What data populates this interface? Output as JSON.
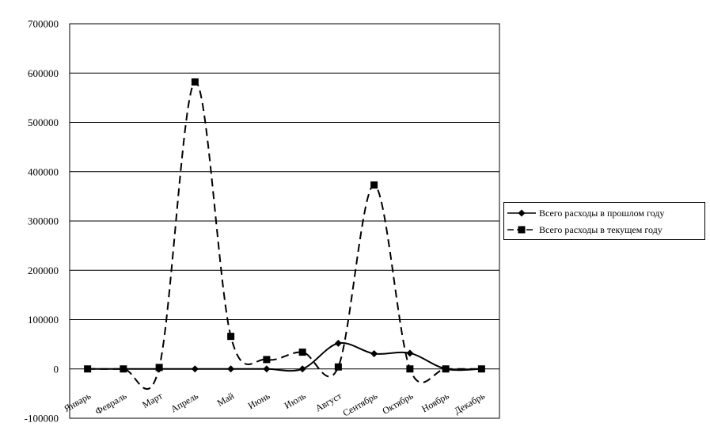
{
  "chart_data": {
    "type": "line",
    "title": "",
    "xlabel": "",
    "ylabel": "",
    "categories": [
      "Январь",
      "Февраль",
      "Март",
      "Апрель",
      "Май",
      "Июнь",
      "Июль",
      "Август",
      "Сентябрь",
      "Октябрь",
      "Ноябрь",
      "Декабрь"
    ],
    "ylim": [
      -100000,
      700000
    ],
    "yticks": [
      -100000,
      0,
      100000,
      200000,
      300000,
      400000,
      500000,
      600000,
      700000
    ],
    "grid": "horizontal",
    "legend_position": "right",
    "series": [
      {
        "name": "Всего расходы в прошлом году",
        "marker": "diamond",
        "line_style": "solid",
        "color": "#000000",
        "values": [
          0,
          0,
          0,
          0,
          0,
          0,
          0,
          52000,
          31000,
          32000,
          0,
          0
        ]
      },
      {
        "name": "Всего расходы в текущем году",
        "marker": "square",
        "line_style": "dashed",
        "color": "#000000",
        "values": [
          0,
          0,
          3000,
          582000,
          66000,
          19000,
          34000,
          4000,
          373000,
          0,
          0,
          0
        ]
      }
    ]
  }
}
